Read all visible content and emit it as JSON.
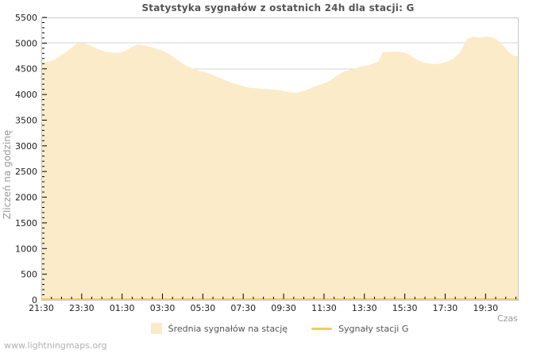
{
  "page": {
    "watermark": "www.lightningmaps.org"
  },
  "chart_data": {
    "type": "area",
    "title": "Statystyka sygnałów z ostatnich 24h dla stacji: G",
    "xlabel": "Czas",
    "ylabel": "Zliczeń na godzinę",
    "grid": "horizontal",
    "legend_position": "bottom",
    "colors": {
      "area_fill": "#FCEBC9",
      "station_line": "#F0CE5E",
      "gridline": "#D5D5D5",
      "plot_border": "#C9C9C9",
      "tick": "#000000",
      "tick_label": "#222222",
      "axis_label": "#999999",
      "title": "#555555"
    },
    "x_axis": {
      "start_label": "21:30",
      "span_hours": 23.6,
      "minor_step_hours": 0.5,
      "tick_hours": [
        0,
        2,
        4,
        6,
        8,
        10,
        12,
        14,
        16,
        18,
        20,
        22
      ],
      "tick_labels": [
        "21:30",
        "23:30",
        "01:30",
        "03:30",
        "05:30",
        "07:30",
        "09:30",
        "11:30",
        "13:30",
        "15:30",
        "17:30",
        "19:30"
      ]
    },
    "y_axis": {
      "min": 0,
      "max": 5500,
      "tick_step": 500,
      "minor_step": 100,
      "tick_labels": [
        "0",
        "500",
        "1000",
        "1500",
        "2000",
        "2500",
        "3000",
        "3500",
        "4000",
        "4500",
        "5000",
        "5500"
      ]
    },
    "series": [
      {
        "name": "Średnia sygnałów na stację",
        "type": "area",
        "color": "#FCEBC9",
        "points": [
          [
            0,
            4620
          ],
          [
            0.3,
            4640
          ],
          [
            0.6,
            4670
          ],
          [
            0.9,
            4740
          ],
          [
            1.2,
            4820
          ],
          [
            1.5,
            4910
          ],
          [
            1.8,
            5005
          ],
          [
            2.1,
            5000
          ],
          [
            2.4,
            4955
          ],
          [
            2.7,
            4905
          ],
          [
            3.0,
            4860
          ],
          [
            3.3,
            4825
          ],
          [
            3.6,
            4810
          ],
          [
            3.9,
            4815
          ],
          [
            4.2,
            4855
          ],
          [
            4.5,
            4930
          ],
          [
            4.8,
            4975
          ],
          [
            5.1,
            4955
          ],
          [
            5.4,
            4925
          ],
          [
            5.7,
            4890
          ],
          [
            6.0,
            4855
          ],
          [
            6.3,
            4795
          ],
          [
            6.6,
            4715
          ],
          [
            6.9,
            4625
          ],
          [
            7.2,
            4555
          ],
          [
            7.5,
            4505
          ],
          [
            7.8,
            4465
          ],
          [
            8.1,
            4435
          ],
          [
            8.4,
            4395
          ],
          [
            8.7,
            4345
          ],
          [
            9.0,
            4295
          ],
          [
            9.3,
            4250
          ],
          [
            9.6,
            4210
          ],
          [
            9.9,
            4175
          ],
          [
            10.2,
            4140
          ],
          [
            10.5,
            4125
          ],
          [
            10.8,
            4115
          ],
          [
            11.1,
            4105
          ],
          [
            11.4,
            4095
          ],
          [
            11.7,
            4090
          ],
          [
            12.0,
            4070
          ],
          [
            12.3,
            4045
          ],
          [
            12.6,
            4030
          ],
          [
            12.9,
            4060
          ],
          [
            13.2,
            4100
          ],
          [
            13.5,
            4150
          ],
          [
            13.8,
            4190
          ],
          [
            14.1,
            4230
          ],
          [
            14.4,
            4300
          ],
          [
            14.7,
            4380
          ],
          [
            15.0,
            4450
          ],
          [
            15.3,
            4480
          ],
          [
            15.6,
            4510
          ],
          [
            15.9,
            4555
          ],
          [
            16.2,
            4570
          ],
          [
            16.45,
            4605
          ],
          [
            16.7,
            4640
          ],
          [
            16.9,
            4820
          ],
          [
            17.2,
            4830
          ],
          [
            17.6,
            4835
          ],
          [
            18.0,
            4820
          ],
          [
            18.3,
            4750
          ],
          [
            18.6,
            4680
          ],
          [
            18.9,
            4625
          ],
          [
            19.2,
            4600
          ],
          [
            19.5,
            4590
          ],
          [
            19.8,
            4610
          ],
          [
            20.1,
            4640
          ],
          [
            20.4,
            4700
          ],
          [
            20.7,
            4800
          ],
          [
            20.9,
            4950
          ],
          [
            21.1,
            5080
          ],
          [
            21.4,
            5125
          ],
          [
            21.7,
            5110
          ],
          [
            22.0,
            5125
          ],
          [
            22.3,
            5120
          ],
          [
            22.6,
            5060
          ],
          [
            22.9,
            4940
          ],
          [
            23.2,
            4810
          ],
          [
            23.4,
            4760
          ],
          [
            23.6,
            4740
          ]
        ]
      },
      {
        "name": "Sygnały stacji G",
        "type": "line",
        "color": "#F0CE5E",
        "points": [
          [
            0,
            0
          ],
          [
            23.6,
            0
          ]
        ]
      }
    ]
  }
}
